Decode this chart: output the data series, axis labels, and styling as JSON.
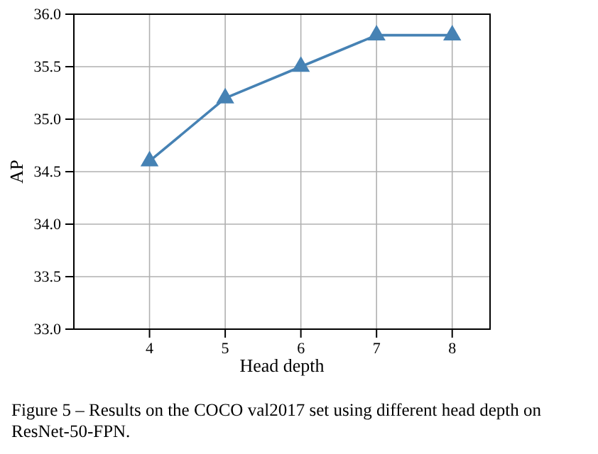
{
  "chart_data": {
    "type": "line",
    "xlabel": "Head depth",
    "ylabel": "AP",
    "x": [
      4,
      5,
      6,
      7,
      8
    ],
    "series": [
      {
        "color": "#4682b4",
        "values": [
          34.6,
          35.2,
          35.5,
          35.8,
          35.8
        ]
      }
    ],
    "xlim": [
      3,
      8.5
    ],
    "xticks": [
      4,
      5,
      6,
      7,
      8
    ],
    "ylim": [
      33,
      36
    ],
    "yticks": [
      {
        "value": 33,
        "label": "33.0"
      },
      {
        "value": 33.5,
        "label": "33.5"
      },
      {
        "value": 34,
        "label": "34.0"
      },
      {
        "value": 34.5,
        "label": "34.5"
      },
      {
        "value": 35,
        "label": "35.0"
      },
      {
        "value": 35.5,
        "label": "35.5"
      },
      {
        "value": 36,
        "label": "36.0"
      }
    ],
    "grid": true,
    "marker": "triangle",
    "line_style": "solid",
    "annotations": [
      "Figure 5 – Results on the COCO val2017 set using different head depth on ResNet-50-FPN."
    ]
  }
}
